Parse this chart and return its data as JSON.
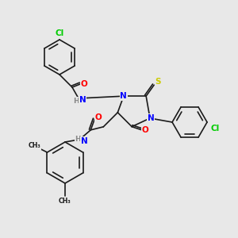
{
  "bg_color": "#e8e8e8",
  "bond_color": "#1a1a1a",
  "atom_colors": {
    "N": "#0000ff",
    "O": "#ff0000",
    "S": "#cccc00",
    "Cl": "#00cc00",
    "H": "#888888",
    "C": "#1a1a1a"
  },
  "font_size": 7.5,
  "line_width": 1.2
}
